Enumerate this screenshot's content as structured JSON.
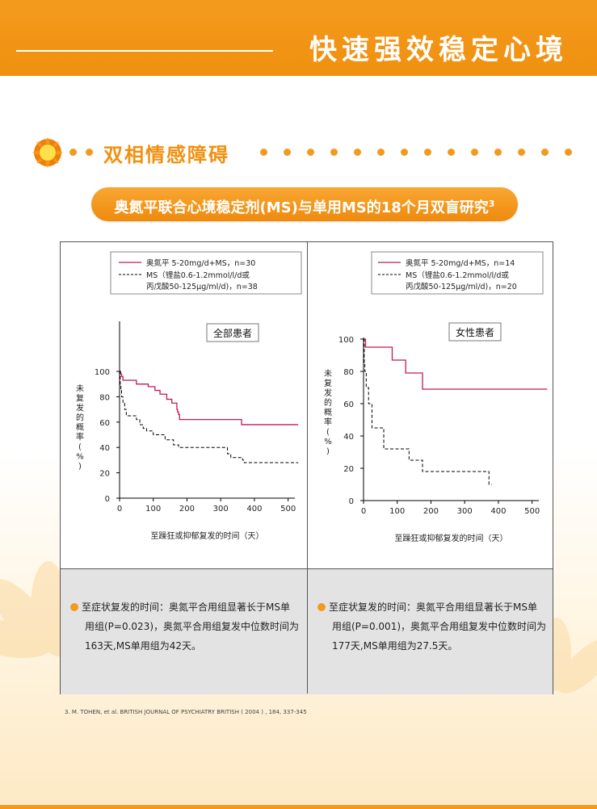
{
  "header": {
    "title": "快速强效稳定心境"
  },
  "section": {
    "title": "双相情感障碍"
  },
  "pill": {
    "text": "奥氮平联合心境稳定剂(MS)与单用MS的18个月双盲研究",
    "sup": "3"
  },
  "colors": {
    "orange": "#f39a1d",
    "red_series": "#c2185b",
    "dashed_series": "#000000"
  },
  "chart_data": [
    {
      "type": "line",
      "title": "全部患者",
      "xlabel": "至躁狂或抑郁复发的时间（天）",
      "ylabel": "未复发的概率(%)",
      "xlim": [
        0,
        520
      ],
      "ylim": [
        0,
        100
      ],
      "xticks": [
        0,
        100,
        200,
        300,
        400,
        500
      ],
      "yticks": [
        0,
        20,
        40,
        60,
        80,
        100
      ],
      "legend_position": "top",
      "series": [
        {
          "name": "奥氮平 5-20mg/d+MS，n=30",
          "line_style": "solid",
          "step": true,
          "x": [
            0,
            3,
            6,
            10,
            35,
            50,
            60,
            85,
            105,
            120,
            125,
            140,
            155,
            165,
            170,
            172,
            175,
            178,
            360,
            362,
            530
          ],
          "y": [
            100,
            98,
            96,
            93,
            93,
            90,
            90,
            88,
            85,
            82,
            82,
            78,
            75,
            75,
            70,
            68,
            66,
            62,
            62,
            58,
            58
          ]
        },
        {
          "name": "MS（锂盐0.6-1.2mmol/l/d或丙戊酸50-125μg/ml/d)，n=38",
          "line_style": "dashed",
          "step": true,
          "x": [
            0,
            2,
            4,
            6,
            10,
            15,
            20,
            40,
            50,
            60,
            70,
            80,
            100,
            110,
            135,
            160,
            170,
            175,
            200,
            320,
            330,
            365,
            370,
            530
          ],
          "y": [
            100,
            90,
            85,
            80,
            75,
            70,
            65,
            65,
            62,
            58,
            55,
            53,
            50,
            50,
            46,
            42,
            42,
            40,
            40,
            35,
            32,
            30,
            28,
            28
          ]
        }
      ]
    },
    {
      "type": "line",
      "title": "女性患者",
      "xlabel": "至躁狂或抑郁复发的时间（天）",
      "ylabel": "未复发的概率(%)",
      "xlim": [
        0,
        520
      ],
      "ylim": [
        0,
        100
      ],
      "xticks": [
        0,
        100,
        200,
        300,
        400,
        500
      ],
      "yticks": [
        0,
        20,
        40,
        60,
        80,
        100
      ],
      "legend_position": "top",
      "series": [
        {
          "name": "奥氮平 5-20mg/d+MS，n=14",
          "line_style": "solid",
          "step": true,
          "x": [
            0,
            3,
            6,
            80,
            85,
            120,
            125,
            170,
            175,
            545
          ],
          "y": [
            100,
            100,
            95,
            95,
            87,
            87,
            79,
            79,
            69,
            69
          ]
        },
        {
          "name": "MS（锂盐0.6-1.2mmol/l/d或丙戊酸50-125μg/ml/d)，n=20",
          "line_style": "dashed",
          "step": true,
          "x": [
            0,
            2,
            4,
            8,
            15,
            25,
            50,
            60,
            130,
            135,
            170,
            175,
            365,
            372,
            380
          ],
          "y": [
            100,
            85,
            80,
            70,
            60,
            45,
            45,
            32,
            32,
            25,
            25,
            18,
            18,
            10,
            10
          ]
        }
      ]
    }
  ],
  "legend": {
    "left": {
      "line1": "奥氮平  5-20mg/d+MS，n=30",
      "line2a": "MS（锂盐0.6-1.2mmol/l/d或",
      "line2b": "丙戊酸50-125μg/ml/d)，n=38"
    },
    "right": {
      "line1": "奥氮平  5-20mg/d+MS，n=14",
      "line2a": "MS（锂盐0.6-1.2mmol/l/d或",
      "line2b": "丙戊酸50-125μg/ml/d)，n=20"
    }
  },
  "summaries": {
    "left": [
      "至症状复发的时间：奥氮平合用组显著长于MS单",
      "用组(P=0.023)，奥氮平合用组复发中位数时间为",
      "163天,MS单用组为42天。"
    ],
    "right": [
      "至症状复发的时间：奥氮平合用组显著长于MS单",
      "用组(P=0.001)，奥氮平合用组复发中位数时间为",
      "177天,MS单用组为27.5天。"
    ]
  },
  "reference": "3. M. TOHEN, et al. BRITISH JOURNAL OF PSYCHIATRY BRITISH ( 2004 ) , 184, 337-345"
}
